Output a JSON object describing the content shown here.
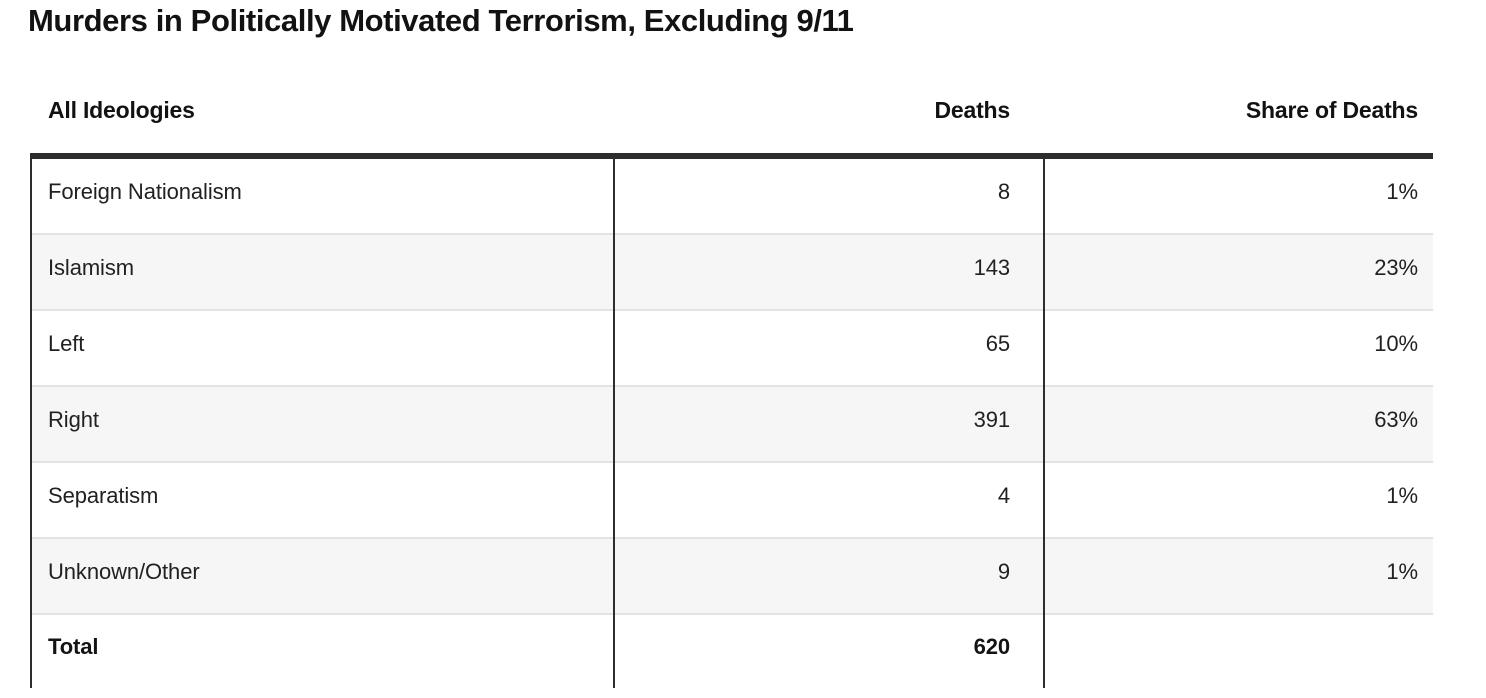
{
  "chart_data": {
    "type": "table",
    "title": "Murders in Politically Motivated Terrorism, Excluding 9/11",
    "columns": [
      "All Ideologies",
      "Deaths",
      "Share of Deaths"
    ],
    "rows": [
      {
        "ideology": "Foreign Nationalism",
        "deaths": 8,
        "share": "1%"
      },
      {
        "ideology": "Islamism",
        "deaths": 143,
        "share": "23%"
      },
      {
        "ideology": "Left",
        "deaths": 65,
        "share": "10%"
      },
      {
        "ideology": "Right",
        "deaths": 391,
        "share": "63%"
      },
      {
        "ideology": "Separatism",
        "deaths": 4,
        "share": "1%"
      },
      {
        "ideology": "Unknown/Other",
        "deaths": 9,
        "share": "1%"
      }
    ],
    "total_row": {
      "label": "Total",
      "deaths": 620,
      "share": ""
    },
    "layout": {
      "grid": "row-dividers-and-column-rules",
      "alternating_row_shading": true,
      "value_alignment": "right"
    }
  },
  "colors": {
    "border_dark": "#2d2d2d",
    "row_divider": "#e2e2e2",
    "alt_row_bg": "#f6f6f6",
    "text": "#212121",
    "heading_text": "#121212",
    "background": "#ffffff"
  }
}
